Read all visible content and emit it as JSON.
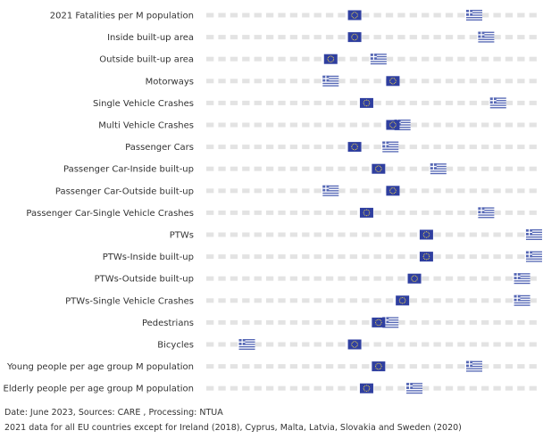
{
  "chart_data": {
    "type": "dot-plot",
    "title": "",
    "xlabel": "",
    "ylabel": "",
    "xlim": [
      0,
      28
    ],
    "grid": false,
    "series": [
      {
        "name": "EU",
        "icon": "eu-flag-icon",
        "color": "#2f3fa0"
      },
      {
        "name": "Greece",
        "icon": "greece-flag-icon",
        "color": "#5567b5"
      }
    ],
    "categories": [
      "2021 Fatalities per M population",
      "Inside built-up area",
      "Outside built-up area",
      "Motorways",
      "Single Vehicle Crashes",
      "Multi Vehicle Crashes",
      "Passenger Cars",
      "Passenger Car-Inside built-up",
      "Passenger Car-Outside built-up",
      "Passenger Car-Single Vehicle Crashes",
      "PTWs",
      "PTWs-Inside built-up",
      "PTWs-Outside built-up",
      "PTWs-Single Vehicle Crashes",
      "Pedestrians",
      "Bicycles",
      "Young people per age group M population",
      "Elderly people per age group M population"
    ],
    "eu_values": [
      12.4,
      12.4,
      10.4,
      15.6,
      13.4,
      15.6,
      12.4,
      14.4,
      15.6,
      13.4,
      18.4,
      18.4,
      17.4,
      16.4,
      14.4,
      12.4,
      14.4,
      13.4
    ],
    "greece_values": [
      22.4,
      23.4,
      14.4,
      10.4,
      24.4,
      16.4,
      15.4,
      19.4,
      10.4,
      23.4,
      27.4,
      27.4,
      26.4,
      26.4,
      15.4,
      3.4,
      22.4,
      17.4
    ]
  },
  "footer": {
    "line1": "Date: June 2023, Sources: CARE , Processing: NTUA",
    "line2": "2021 data for all EU countries except for Ireland (2018), Cyprus, Malta,  Latvia, Slovakia and Sweden (2020)"
  }
}
